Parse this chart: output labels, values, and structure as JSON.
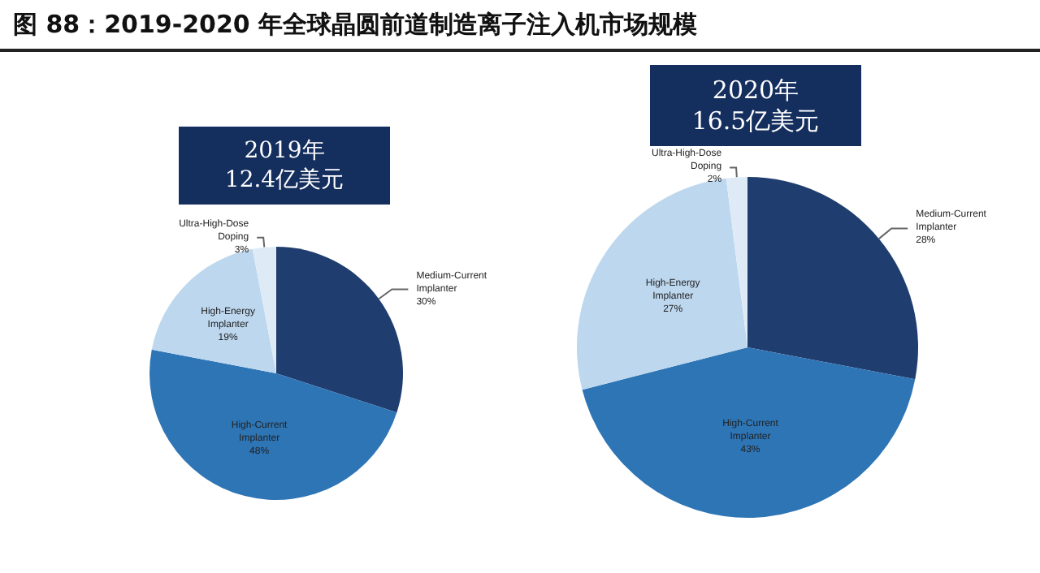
{
  "chart_data": [
    {
      "type": "pie",
      "title": "图 88：2019-2020 年全球晶圆前道制造离子注入机市场规模",
      "subtitle": "2019年\n12.4亿美元",
      "categories": [
        "Medium-Current Implanter",
        "High-Current Implanter",
        "High-Energy Implanter",
        "Ultra-High-Dose Doping"
      ],
      "values": [
        30,
        48,
        19,
        3
      ],
      "value_labels": [
        "30%",
        "48%",
        "19%",
        "3%"
      ],
      "colors": [
        "#1f3d6e",
        "#2e75b6",
        "#bdd7ee",
        "#deebf7"
      ],
      "legend": false
    },
    {
      "type": "pie",
      "subtitle": "2020年\n16.5亿美元",
      "categories": [
        "Medium-Current Implanter",
        "High-Current Implanter",
        "High-Energy Implanter",
        "Ultra-High-Dose Doping"
      ],
      "values": [
        28,
        43,
        27,
        2
      ],
      "value_labels": [
        "28%",
        "43%",
        "27%",
        "2%"
      ],
      "colors": [
        "#1f3d6e",
        "#2e75b6",
        "#bdd7ee",
        "#deebf7"
      ],
      "legend": false
    }
  ]
}
